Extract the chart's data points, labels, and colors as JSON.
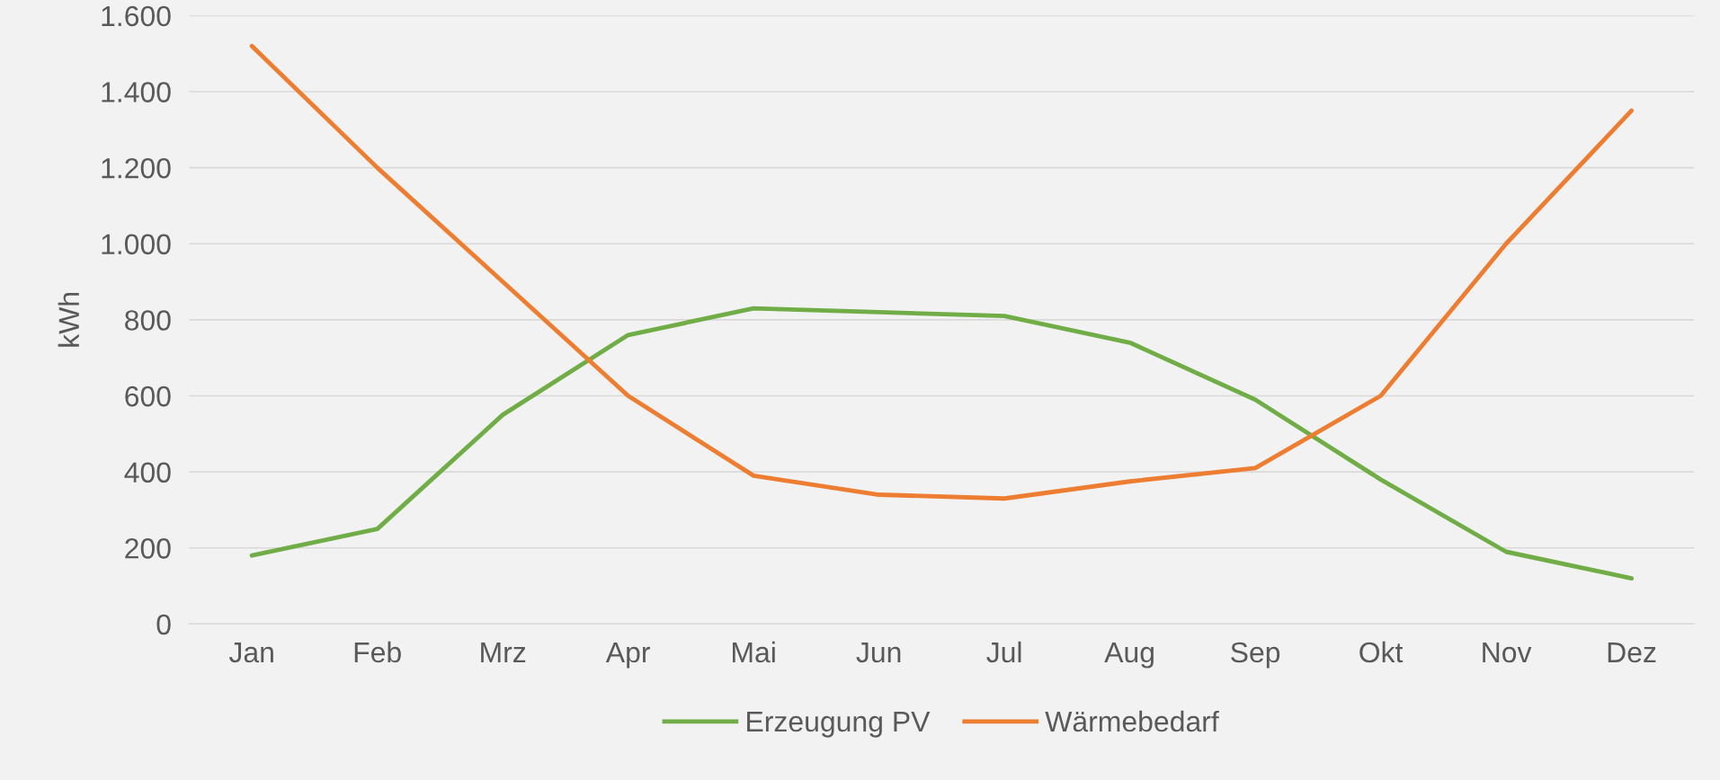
{
  "chart_data": {
    "type": "line",
    "ylabel": "kWh",
    "categories": [
      "Jan",
      "Feb",
      "Mrz",
      "Apr",
      "Mai",
      "Jun",
      "Jul",
      "Aug",
      "Sep",
      "Okt",
      "Nov",
      "Dez"
    ],
    "series": [
      {
        "name": "Erzeugung PV",
        "color": "#70ad47",
        "values": [
          180,
          250,
          550,
          760,
          830,
          820,
          810,
          740,
          590,
          380,
          190,
          120
        ]
      },
      {
        "name": "Wärmebedarf",
        "color": "#ed7d31",
        "values": [
          1520,
          1200,
          900,
          600,
          390,
          340,
          330,
          375,
          410,
          600,
          1000,
          1350
        ]
      }
    ],
    "ylim": [
      0,
      1600
    ],
    "yticks": [
      0,
      200,
      400,
      600,
      800,
      {
        "value": 1000,
        "label": "1.000"
      },
      {
        "value": 1200,
        "label": "1.200"
      },
      {
        "value": 1400,
        "label": "1.400"
      },
      {
        "value": 1600,
        "label": "1.600"
      }
    ],
    "grid": "y",
    "legend": "bottom",
    "marker": "none",
    "line_style": "solid"
  }
}
